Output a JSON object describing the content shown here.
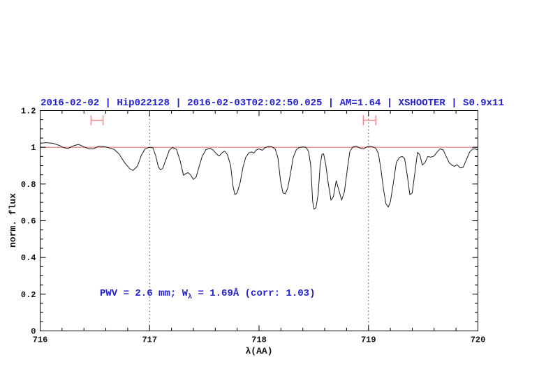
{
  "title": {
    "text": "2016-02-02 | Hip022128 | 2016-02-03T02:02:50.025 | AM=1.64 | XSHOOTER | S0.9x11",
    "color": "#2222cc"
  },
  "annotation": {
    "part1": "PWV = 2.6 mm; W",
    "sub": "λ",
    "part2": " = 1.69Å (corr: 1.03)",
    "color": "#2222cc"
  },
  "colors": {
    "spectrum": "#1c1c1c",
    "continuum": "#ee7777",
    "marker": "#ef8e8e",
    "dotted": "#4a4a4a",
    "frame": "#000000",
    "title_blue": "#2222cc"
  },
  "chart_data": {
    "type": "line",
    "title": "2016-02-02 | Hip022128 | 2016-02-03T02:02:50.025 | AM=1.64 | XSHOOTER | S0.9x11",
    "annotation": "PWV = 2.6 mm; Wλ = 1.69Å (corr: 1.03)",
    "xlabel": "λ(AA)",
    "ylabel": "norm. flux",
    "xlim": [
      716,
      720
    ],
    "ylim": [
      0,
      1.2
    ],
    "grid": false,
    "legend": false,
    "xticks": {
      "major": [
        716,
        717,
        718,
        719,
        720
      ],
      "labels": [
        "716",
        "717",
        "718",
        "719",
        "720"
      ],
      "minor_step": 0.2
    },
    "yticks": {
      "major": [
        0,
        0.2,
        0.4,
        0.6,
        0.8,
        1,
        1.2
      ],
      "labels": [
        "0",
        "0.2",
        "0.4",
        "0.6",
        "0.8",
        "1",
        "1.2"
      ],
      "minor_step": 0.05
    },
    "continuum_flux": 1.0,
    "dotted_lines_x": [
      717,
      719
    ],
    "range_markers": [
      {
        "x_center": 716.52,
        "half_width": 0.055,
        "flux": 1.147
      },
      {
        "x_center": 719.01,
        "half_width": 0.057,
        "flux": 1.147
      }
    ],
    "series": [
      {
        "name": "normalized telluric spectrum",
        "points": [
          [
            716.0,
            1.022
          ],
          [
            716.055,
            1.025
          ],
          [
            716.115,
            1.022
          ],
          [
            716.175,
            1.01
          ],
          [
            716.215,
            0.998
          ],
          [
            716.255,
            0.994
          ],
          [
            716.305,
            1.008
          ],
          [
            716.35,
            1.016
          ],
          [
            716.4,
            1.002
          ],
          [
            716.45,
            0.991
          ],
          [
            716.49,
            0.992
          ],
          [
            716.53,
            1.005
          ],
          [
            716.575,
            1.005
          ],
          [
            716.625,
            0.998
          ],
          [
            716.675,
            0.989
          ],
          [
            716.72,
            0.964
          ],
          [
            716.77,
            0.918
          ],
          [
            716.82,
            0.882
          ],
          [
            716.85,
            0.874
          ],
          [
            716.89,
            0.898
          ],
          [
            716.925,
            0.957
          ],
          [
            716.96,
            0.992
          ],
          [
            717.0,
            1.0
          ],
          [
            717.03,
            0.997
          ],
          [
            717.055,
            0.955
          ],
          [
            717.08,
            0.893
          ],
          [
            717.1,
            0.877
          ],
          [
            717.12,
            0.885
          ],
          [
            717.15,
            0.935
          ],
          [
            717.18,
            0.984
          ],
          [
            717.21,
            0.999
          ],
          [
            717.245,
            0.989
          ],
          [
            717.28,
            0.925
          ],
          [
            717.31,
            0.848
          ],
          [
            717.33,
            0.856
          ],
          [
            717.35,
            0.862
          ],
          [
            717.375,
            0.85
          ],
          [
            717.4,
            0.825
          ],
          [
            717.425,
            0.838
          ],
          [
            717.45,
            0.89
          ],
          [
            717.48,
            0.95
          ],
          [
            717.515,
            0.987
          ],
          [
            717.55,
            0.995
          ],
          [
            717.58,
            0.985
          ],
          [
            717.61,
            0.965
          ],
          [
            717.635,
            0.952
          ],
          [
            717.66,
            0.969
          ],
          [
            717.685,
            0.979
          ],
          [
            717.71,
            0.962
          ],
          [
            717.74,
            0.903
          ],
          [
            717.762,
            0.788
          ],
          [
            717.78,
            0.742
          ],
          [
            717.8,
            0.752
          ],
          [
            717.828,
            0.808
          ],
          [
            717.852,
            0.888
          ],
          [
            717.878,
            0.945
          ],
          [
            717.905,
            0.968
          ],
          [
            717.93,
            0.975
          ],
          [
            717.952,
            0.968
          ],
          [
            717.975,
            0.986
          ],
          [
            718.0,
            0.991
          ],
          [
            718.03,
            0.984
          ],
          [
            718.055,
            0.998
          ],
          [
            718.09,
            1.005
          ],
          [
            718.12,
            1.002
          ],
          [
            718.148,
            0.99
          ],
          [
            718.172,
            0.944
          ],
          [
            718.196,
            0.82
          ],
          [
            718.218,
            0.752
          ],
          [
            718.24,
            0.746
          ],
          [
            718.262,
            0.778
          ],
          [
            718.288,
            0.858
          ],
          [
            718.312,
            0.944
          ],
          [
            718.34,
            0.986
          ],
          [
            718.365,
            0.998
          ],
          [
            718.4,
            1.002
          ],
          [
            718.43,
            0.999
          ],
          [
            718.452,
            0.978
          ],
          [
            718.472,
            0.903
          ],
          [
            718.49,
            0.705
          ],
          [
            718.503,
            0.663
          ],
          [
            718.52,
            0.67
          ],
          [
            718.54,
            0.742
          ],
          [
            718.558,
            0.9
          ],
          [
            718.575,
            0.962
          ],
          [
            718.59,
            0.964
          ],
          [
            718.61,
            0.905
          ],
          [
            718.632,
            0.805
          ],
          [
            718.658,
            0.712
          ],
          [
            718.68,
            0.732
          ],
          [
            718.705,
            0.818
          ],
          [
            718.728,
            0.77
          ],
          [
            718.755,
            0.712
          ],
          [
            718.78,
            0.758
          ],
          [
            718.808,
            0.888
          ],
          [
            718.83,
            0.978
          ],
          [
            718.858,
            1.002
          ],
          [
            718.888,
            1.006
          ],
          [
            718.92,
            0.996
          ],
          [
            718.955,
            0.991
          ],
          [
            718.985,
            1.002
          ],
          [
            719.01,
            1.006
          ],
          [
            719.04,
            1.002
          ],
          [
            719.068,
            0.994
          ],
          [
            719.09,
            0.966
          ],
          [
            719.112,
            0.888
          ],
          [
            719.138,
            0.768
          ],
          [
            719.16,
            0.692
          ],
          [
            719.18,
            0.674
          ],
          [
            719.2,
            0.702
          ],
          [
            719.228,
            0.808
          ],
          [
            719.255,
            0.918
          ],
          [
            719.282,
            0.944
          ],
          [
            719.308,
            0.95
          ],
          [
            719.33,
            0.938
          ],
          [
            719.355,
            0.845
          ],
          [
            719.378,
            0.742
          ],
          [
            719.4,
            0.752
          ],
          [
            719.422,
            0.852
          ],
          [
            719.448,
            0.972
          ],
          [
            719.47,
            0.958
          ],
          [
            719.492,
            0.903
          ],
          [
            719.518,
            0.918
          ],
          [
            719.542,
            0.95
          ],
          [
            719.568,
            0.946
          ],
          [
            719.598,
            0.952
          ],
          [
            719.628,
            0.975
          ],
          [
            719.655,
            0.992
          ],
          [
            719.682,
            0.986
          ],
          [
            719.71,
            0.95
          ],
          [
            719.738,
            0.916
          ],
          [
            719.762,
            0.903
          ],
          [
            719.785,
            0.896
          ],
          [
            719.81,
            0.905
          ],
          [
            719.838,
            0.888
          ],
          [
            719.865,
            0.891
          ],
          [
            719.895,
            0.932
          ],
          [
            719.925,
            0.975
          ],
          [
            719.95,
            0.99
          ],
          [
            719.975,
            0.991
          ],
          [
            720.0,
            0.986
          ]
        ]
      }
    ]
  }
}
